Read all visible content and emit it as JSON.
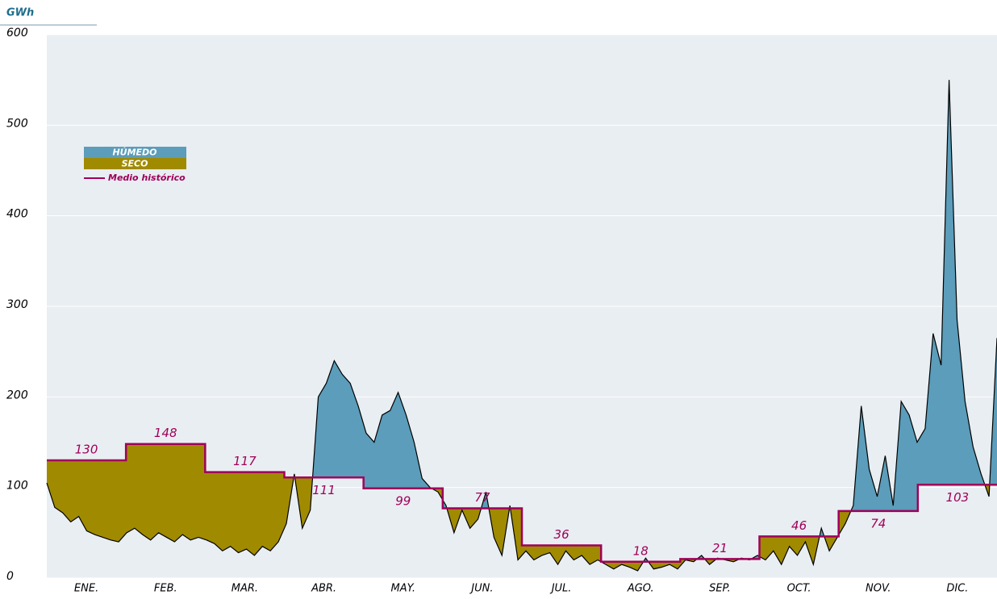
{
  "chart_data": {
    "type": "area",
    "y_label": "GWh",
    "categories": [
      "ENE.",
      "FEB.",
      "MAR.",
      "ABR.",
      "MAY.",
      "JUN.",
      "JUL.",
      "AGO.",
      "SEP.",
      "OCT.",
      "NOV.",
      "DIC."
    ],
    "ylim": [
      0,
      600
    ],
    "yticks": [
      0,
      100,
      200,
      300,
      400,
      500,
      600
    ],
    "grid": true,
    "legend": "upper left",
    "fill_above": {
      "name": "HÚMEDO",
      "color": "#5b9dba"
    },
    "fill_below": {
      "name": "SECO",
      "color": "#a08a00"
    },
    "daily": {
      "color": "#000000",
      "values": [
        105,
        78,
        72,
        62,
        68,
        52,
        48,
        45,
        42,
        40,
        50,
        55,
        48,
        42,
        50,
        45,
        40,
        48,
        42,
        45,
        42,
        38,
        30,
        35,
        28,
        32,
        25,
        35,
        30,
        40,
        60,
        115,
        55,
        75,
        200,
        215,
        240,
        225,
        215,
        190,
        160,
        150,
        180,
        185,
        205,
        180,
        150,
        110,
        100,
        95,
        80,
        50,
        75,
        55,
        65,
        95,
        45,
        25,
        80,
        20,
        30,
        20,
        25,
        28,
        15,
        30,
        20,
        25,
        15,
        20,
        15,
        10,
        15,
        12,
        8,
        22,
        10,
        12,
        15,
        10,
        20,
        18,
        25,
        15,
        22,
        20,
        18,
        22,
        20,
        25,
        20,
        30,
        15,
        35,
        25,
        40,
        15,
        55,
        30,
        45,
        60,
        80,
        190,
        120,
        90,
        135,
        80,
        195,
        180,
        150,
        165,
        270,
        235,
        550,
        285,
        195,
        145,
        115,
        90,
        265
      ]
    },
    "historical": {
      "name": "Medio histórico",
      "color": "#a0005a",
      "values": [
        130,
        148,
        117,
        111,
        99,
        77,
        36,
        18,
        21,
        46,
        74,
        103
      ]
    }
  }
}
